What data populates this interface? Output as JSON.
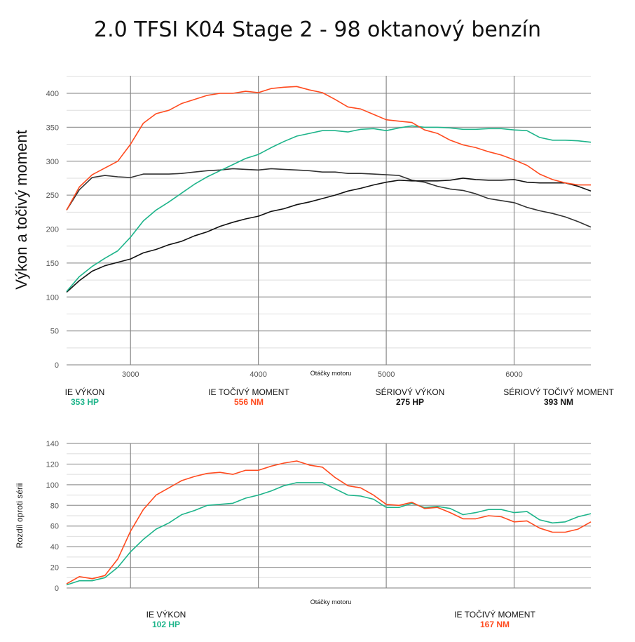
{
  "title": "2.0 TFSI K04 Stage 2 - 98 oktanový benzín",
  "colors": {
    "ie_power": "#1db48a",
    "ie_torque": "#ff4b1f",
    "stock_power": "#111111",
    "stock_torque": "#333333"
  },
  "chart_data": [
    {
      "type": "line",
      "ylabel": "Výkon a točivý moment",
      "xlabel": "Otáčky motoru",
      "xlim": [
        2500,
        6600
      ],
      "ylim": [
        0,
        425
      ],
      "xticks": [
        3000,
        4000,
        5000,
        6000
      ],
      "yticks": [
        0,
        50,
        100,
        150,
        200,
        250,
        300,
        350,
        400
      ],
      "grid": true,
      "x": [
        2500,
        2600,
        2700,
        2800,
        2900,
        3000,
        3100,
        3200,
        3300,
        3400,
        3500,
        3600,
        3700,
        3800,
        3900,
        4000,
        4100,
        4200,
        4300,
        4400,
        4500,
        4600,
        4700,
        4800,
        4900,
        5000,
        5100,
        5200,
        5300,
        5400,
        5500,
        5600,
        5700,
        5800,
        5900,
        6000,
        6100,
        6200,
        6300,
        6400,
        6500,
        6600
      ],
      "series": [
        {
          "name": "IE TOČIVÝ MOMENT",
          "key": "ie_torque",
          "values": [
            228,
            262,
            280,
            290,
            300,
            325,
            356,
            370,
            375,
            385,
            391,
            397,
            400,
            400,
            403,
            401,
            407,
            409,
            410,
            405,
            401,
            391,
            380,
            377,
            369,
            361,
            359,
            357,
            346,
            341,
            331,
            324,
            320,
            314,
            309,
            302,
            294,
            281,
            273,
            268,
            265,
            265
          ]
        },
        {
          "name": "IE VÝKON",
          "key": "ie_power",
          "values": [
            108,
            130,
            145,
            157,
            168,
            188,
            212,
            228,
            240,
            253,
            266,
            277,
            286,
            295,
            304,
            310,
            320,
            329,
            337,
            341,
            345,
            345,
            343,
            347,
            348,
            345,
            349,
            352,
            350,
            350,
            349,
            347,
            347,
            348,
            348,
            346,
            345,
            335,
            331,
            331,
            330,
            328
          ]
        },
        {
          "name": "SÉRIOVÝ TOČIVÝ MOMENT",
          "key": "stock_torque",
          "values": [
            228,
            258,
            276,
            279,
            277,
            276,
            281,
            281,
            281,
            282,
            284,
            286,
            287,
            289,
            288,
            287,
            289,
            288,
            287,
            286,
            284,
            284,
            282,
            282,
            281,
            280,
            279,
            272,
            269,
            263,
            259,
            257,
            252,
            245,
            242,
            239,
            232,
            227,
            223,
            218,
            211,
            203
          ]
        },
        {
          "name": "SÉRIOVÝ VÝKON",
          "key": "stock_power",
          "values": [
            107,
            124,
            138,
            146,
            151,
            156,
            165,
            170,
            177,
            182,
            190,
            196,
            204,
            210,
            215,
            219,
            226,
            230,
            236,
            240,
            245,
            250,
            256,
            260,
            265,
            269,
            272,
            271,
            271,
            271,
            272,
            275,
            273,
            272,
            272,
            273,
            269,
            268,
            268,
            268,
            263,
            256
          ]
        }
      ],
      "legend": [
        {
          "label": "IE VÝKON",
          "value": "353 HP",
          "key": "ie_power"
        },
        {
          "label": "IE TOČIVÝ MOMENT",
          "value": "556 NM",
          "key": "ie_torque"
        },
        {
          "label": "SÉRIOVÝ VÝKON",
          "value": "275 HP",
          "key": "plain"
        },
        {
          "label": "SÉRIOVÝ TOČIVÝ MOMENT",
          "value": "393 NM",
          "key": "plain"
        }
      ]
    },
    {
      "type": "line",
      "ylabel": "Rozdíl oproti sérii",
      "xlabel": "Otáčky motoru",
      "xlim": [
        2500,
        6600
      ],
      "ylim": [
        0,
        140
      ],
      "xticks": [
        3000,
        4000,
        5000,
        6000
      ],
      "yticks": [
        0,
        20,
        40,
        60,
        80,
        100,
        120,
        140
      ],
      "grid": true,
      "x": [
        2500,
        2600,
        2700,
        2800,
        2900,
        3000,
        3100,
        3200,
        3300,
        3400,
        3500,
        3600,
        3700,
        3800,
        3900,
        4000,
        4100,
        4200,
        4300,
        4400,
        4500,
        4600,
        4700,
        4800,
        4900,
        5000,
        5100,
        5200,
        5300,
        5400,
        5500,
        5600,
        5700,
        5800,
        5900,
        6000,
        6100,
        6200,
        6300,
        6400,
        6500,
        6600
      ],
      "series": [
        {
          "name": "IE TOČIVÝ MOMENT",
          "key": "ie_torque",
          "values": [
            4,
            11,
            9,
            12,
            28,
            55,
            76,
            90,
            97,
            104,
            108,
            111,
            112,
            110,
            114,
            114,
            118,
            121,
            123,
            119,
            117,
            107,
            99,
            97,
            90,
            81,
            80,
            83,
            77,
            78,
            73,
            67,
            67,
            70,
            69,
            64,
            65,
            58,
            54,
            54,
            57,
            64
          ]
        },
        {
          "name": "IE VÝKON",
          "key": "ie_power",
          "values": [
            3,
            7,
            7,
            10,
            20,
            35,
            47,
            57,
            63,
            71,
            75,
            80,
            81,
            82,
            87,
            90,
            94,
            99,
            102,
            102,
            102,
            96,
            90,
            89,
            86,
            78,
            78,
            82,
            78,
            79,
            77,
            71,
            73,
            76,
            76,
            73,
            74,
            66,
            63,
            64,
            69,
            72
          ]
        }
      ],
      "legend": [
        {
          "label": "IE VÝKON",
          "value": "102 HP",
          "key": "ie_power"
        },
        {
          "label": "IE TOČIVÝ MOMENT",
          "value": "167 NM",
          "key": "ie_torque"
        }
      ]
    }
  ]
}
